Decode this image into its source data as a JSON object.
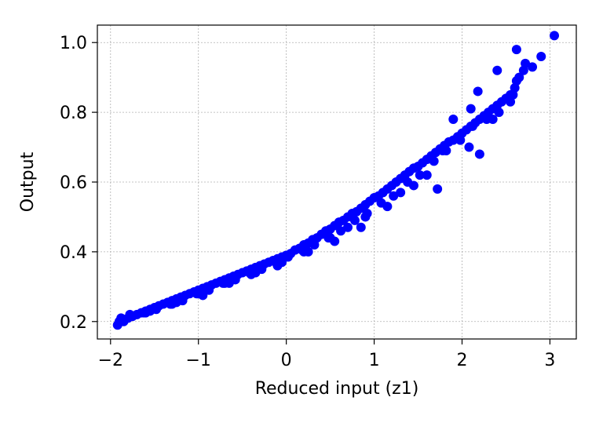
{
  "chart_data": {
    "type": "scatter",
    "title": "",
    "xlabel": "Reduced input (z1)",
    "ylabel": "Output",
    "xlim": [
      -2.15,
      3.3
    ],
    "ylim": [
      0.15,
      1.05
    ],
    "xticks": [
      -2,
      -1,
      0,
      1,
      2,
      3
    ],
    "xtick_labels": [
      "−2",
      "−1",
      "0",
      "1",
      "2",
      "3"
    ],
    "yticks": [
      0.2,
      0.4,
      0.6,
      0.8,
      1.0
    ],
    "ytick_labels": [
      "0.2",
      "0.4",
      "0.6",
      "0.8",
      "1.0"
    ],
    "grid": true,
    "point_color": "#0000ff",
    "series": [
      {
        "x": [
          -1.92,
          -1.9,
          -1.85,
          -1.8,
          -1.75,
          -1.7,
          -1.65,
          -1.6,
          -1.55,
          -1.5,
          -1.45,
          -1.4,
          -1.35,
          -1.3,
          -1.25,
          -1.2,
          -1.15,
          -1.1,
          -1.05,
          -1.0,
          -0.95,
          -0.9,
          -0.85,
          -0.8,
          -0.75,
          -0.7,
          -0.65,
          -0.6,
          -0.55,
          -0.5,
          -0.45,
          -0.4,
          -0.35,
          -0.3,
          -0.25,
          -0.2,
          -0.15,
          -0.1,
          -0.05,
          0.0,
          0.05,
          0.1,
          0.15,
          0.2,
          0.25,
          0.3,
          0.35,
          0.4,
          0.45,
          0.5,
          0.55,
          0.6,
          0.65,
          0.7,
          0.75,
          0.8,
          0.85,
          0.9,
          0.95,
          1.0,
          1.05,
          1.1,
          1.15,
          1.2,
          1.25,
          1.3,
          1.35,
          1.4,
          1.45,
          1.5,
          1.55,
          1.6,
          1.65,
          1.7,
          1.75,
          1.8,
          1.85,
          1.9,
          1.95,
          2.0,
          2.05,
          2.1,
          2.15,
          2.2,
          2.25,
          2.3,
          2.35,
          2.4,
          2.45,
          2.5,
          2.55,
          2.6,
          2.65,
          2.7,
          2.8,
          2.9,
          3.05,
          -1.88,
          -1.78,
          -1.62,
          -1.48,
          -1.32,
          -1.18,
          -1.02,
          -0.88,
          -0.72,
          -0.58,
          -0.42,
          -0.28,
          -0.12,
          0.02,
          0.18,
          0.32,
          0.48,
          0.62,
          0.78,
          0.92,
          1.08,
          1.22,
          1.38,
          1.52,
          1.68,
          1.82,
          1.98,
          2.12,
          2.28,
          2.42,
          2.58,
          2.62,
          2.72,
          2.18,
          2.4,
          1.9,
          2.1,
          1.6,
          1.3,
          0.9,
          0.7,
          0.5,
          0.2,
          -0.1,
          -0.4,
          -0.7,
          -1.0,
          -1.3,
          -1.6,
          -1.9,
          2.35,
          2.55,
          2.62,
          2.2,
          1.78,
          2.08,
          1.72,
          1.45,
          1.15,
          0.85,
          0.55,
          0.25,
          -0.05,
          -0.35,
          -0.65,
          -0.95,
          -1.25,
          -1.55,
          -1.85
        ],
        "y": [
          0.19,
          0.2,
          0.205,
          0.21,
          0.215,
          0.22,
          0.225,
          0.23,
          0.235,
          0.24,
          0.245,
          0.25,
          0.255,
          0.26,
          0.265,
          0.27,
          0.275,
          0.28,
          0.285,
          0.29,
          0.295,
          0.3,
          0.305,
          0.31,
          0.315,
          0.32,
          0.325,
          0.33,
          0.335,
          0.34,
          0.345,
          0.35,
          0.355,
          0.36,
          0.365,
          0.37,
          0.375,
          0.38,
          0.385,
          0.39,
          0.395,
          0.405,
          0.41,
          0.42,
          0.425,
          0.435,
          0.44,
          0.45,
          0.46,
          0.465,
          0.475,
          0.485,
          0.49,
          0.5,
          0.51,
          0.515,
          0.525,
          0.535,
          0.545,
          0.555,
          0.56,
          0.57,
          0.58,
          0.59,
          0.6,
          0.61,
          0.62,
          0.63,
          0.64,
          0.645,
          0.655,
          0.665,
          0.675,
          0.685,
          0.695,
          0.705,
          0.715,
          0.72,
          0.73,
          0.74,
          0.75,
          0.76,
          0.77,
          0.78,
          0.79,
          0.8,
          0.81,
          0.82,
          0.83,
          0.84,
          0.85,
          0.87,
          0.9,
          0.92,
          0.93,
          0.96,
          1.02,
          0.21,
          0.22,
          0.225,
          0.235,
          0.25,
          0.26,
          0.28,
          0.29,
          0.31,
          0.32,
          0.34,
          0.35,
          0.37,
          0.385,
          0.405,
          0.42,
          0.44,
          0.46,
          0.49,
          0.51,
          0.54,
          0.56,
          0.6,
          0.62,
          0.66,
          0.69,
          0.72,
          0.76,
          0.78,
          0.8,
          0.85,
          0.98,
          0.94,
          0.86,
          0.92,
          0.78,
          0.81,
          0.62,
          0.57,
          0.5,
          0.47,
          0.44,
          0.4,
          0.36,
          0.335,
          0.31,
          0.28,
          0.25,
          0.225,
          0.2,
          0.78,
          0.83,
          0.89,
          0.68,
          0.69,
          0.7,
          0.58,
          0.59,
          0.53,
          0.47,
          0.43,
          0.4,
          0.37,
          0.34,
          0.31,
          0.275,
          0.255,
          0.23,
          0.2
        ]
      }
    ]
  }
}
